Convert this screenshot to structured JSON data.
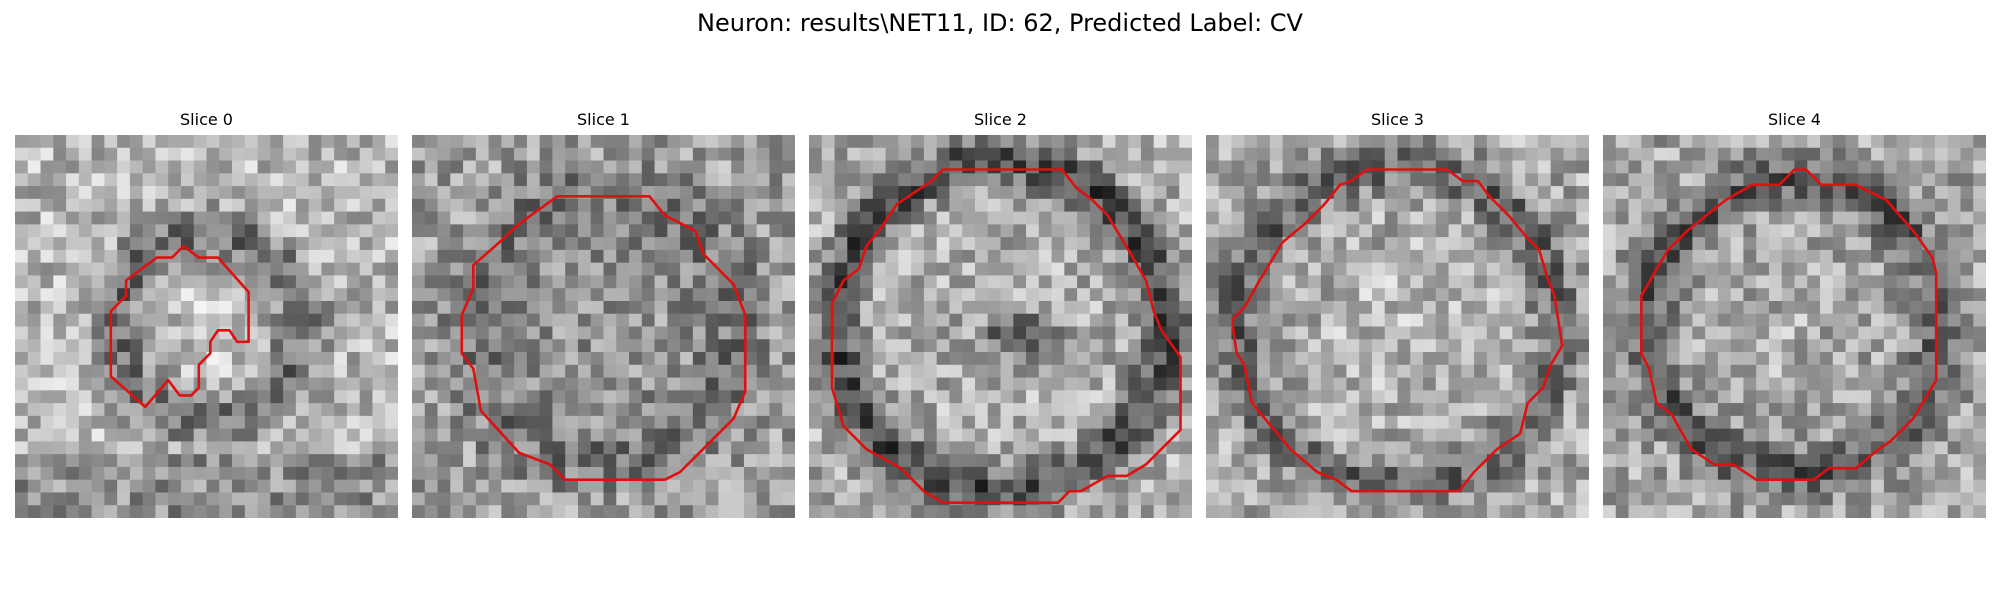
{
  "figure": {
    "title": "Neuron: results\\NET11, ID: 62, Predicted Label: CV",
    "contour_color": "#e01010",
    "colormap": "grayscale"
  },
  "panels": [
    {
      "title": "Slice 0",
      "seed": 11,
      "pattern": "ring-small",
      "contour": [
        [
          0.44,
          0.29
        ],
        [
          0.48,
          0.32
        ],
        [
          0.53,
          0.32
        ],
        [
          0.61,
          0.41
        ],
        [
          0.61,
          0.54
        ],
        [
          0.58,
          0.54
        ],
        [
          0.56,
          0.51
        ],
        [
          0.53,
          0.51
        ],
        [
          0.51,
          0.54
        ],
        [
          0.51,
          0.57
        ],
        [
          0.48,
          0.6
        ],
        [
          0.48,
          0.66
        ],
        [
          0.46,
          0.68
        ],
        [
          0.43,
          0.68
        ],
        [
          0.4,
          0.64
        ],
        [
          0.34,
          0.71
        ],
        [
          0.25,
          0.63
        ],
        [
          0.25,
          0.46
        ],
        [
          0.29,
          0.42
        ],
        [
          0.29,
          0.38
        ],
        [
          0.37,
          0.32
        ],
        [
          0.41,
          0.32
        ]
      ]
    },
    {
      "title": "Slice 1",
      "seed": 23,
      "pattern": "dark-texture",
      "contour": [
        [
          0.38,
          0.16
        ],
        [
          0.62,
          0.16
        ],
        [
          0.66,
          0.21
        ],
        [
          0.74,
          0.25
        ],
        [
          0.76,
          0.31
        ],
        [
          0.84,
          0.39
        ],
        [
          0.87,
          0.47
        ],
        [
          0.87,
          0.67
        ],
        [
          0.84,
          0.74
        ],
        [
          0.76,
          0.82
        ],
        [
          0.7,
          0.88
        ],
        [
          0.66,
          0.9
        ],
        [
          0.4,
          0.9
        ],
        [
          0.36,
          0.86
        ],
        [
          0.28,
          0.83
        ],
        [
          0.18,
          0.72
        ],
        [
          0.16,
          0.61
        ],
        [
          0.13,
          0.57
        ],
        [
          0.13,
          0.47
        ],
        [
          0.16,
          0.4
        ],
        [
          0.16,
          0.34
        ],
        [
          0.24,
          0.27
        ],
        [
          0.27,
          0.24
        ],
        [
          0.31,
          0.21
        ]
      ]
    },
    {
      "title": "Slice 2",
      "seed": 37,
      "pattern": "dark-center",
      "contour": [
        [
          0.35,
          0.09
        ],
        [
          0.66,
          0.09
        ],
        [
          0.7,
          0.14
        ],
        [
          0.74,
          0.17
        ],
        [
          0.78,
          0.21
        ],
        [
          0.84,
          0.31
        ],
        [
          0.88,
          0.38
        ],
        [
          0.9,
          0.46
        ],
        [
          0.92,
          0.51
        ],
        [
          0.97,
          0.58
        ],
        [
          0.97,
          0.77
        ],
        [
          0.93,
          0.81
        ],
        [
          0.88,
          0.86
        ],
        [
          0.83,
          0.89
        ],
        [
          0.78,
          0.89
        ],
        [
          0.71,
          0.93
        ],
        [
          0.68,
          0.93
        ],
        [
          0.65,
          0.96
        ],
        [
          0.35,
          0.96
        ],
        [
          0.3,
          0.93
        ],
        [
          0.24,
          0.87
        ],
        [
          0.15,
          0.82
        ],
        [
          0.09,
          0.76
        ],
        [
          0.06,
          0.66
        ],
        [
          0.06,
          0.44
        ],
        [
          0.09,
          0.38
        ],
        [
          0.13,
          0.35
        ],
        [
          0.15,
          0.29
        ],
        [
          0.19,
          0.24
        ],
        [
          0.23,
          0.18
        ],
        [
          0.26,
          0.16
        ],
        [
          0.32,
          0.12
        ]
      ]
    },
    {
      "title": "Slice 3",
      "seed": 51,
      "pattern": "light-center",
      "contour": [
        [
          0.42,
          0.09
        ],
        [
          0.63,
          0.09
        ],
        [
          0.67,
          0.12
        ],
        [
          0.71,
          0.12
        ],
        [
          0.74,
          0.16
        ],
        [
          0.79,
          0.21
        ],
        [
          0.84,
          0.27
        ],
        [
          0.87,
          0.3
        ],
        [
          0.89,
          0.37
        ],
        [
          0.91,
          0.42
        ],
        [
          0.93,
          0.55
        ],
        [
          0.9,
          0.6
        ],
        [
          0.88,
          0.66
        ],
        [
          0.84,
          0.7
        ],
        [
          0.82,
          0.78
        ],
        [
          0.76,
          0.82
        ],
        [
          0.7,
          0.88
        ],
        [
          0.66,
          0.93
        ],
        [
          0.38,
          0.93
        ],
        [
          0.34,
          0.9
        ],
        [
          0.29,
          0.88
        ],
        [
          0.22,
          0.82
        ],
        [
          0.12,
          0.7
        ],
        [
          0.1,
          0.6
        ],
        [
          0.08,
          0.57
        ],
        [
          0.07,
          0.5
        ],
        [
          0.07,
          0.48
        ],
        [
          0.1,
          0.45
        ],
        [
          0.14,
          0.38
        ],
        [
          0.17,
          0.33
        ],
        [
          0.2,
          0.28
        ],
        [
          0.26,
          0.23
        ],
        [
          0.31,
          0.18
        ],
        [
          0.35,
          0.13
        ],
        [
          0.38,
          0.12
        ]
      ]
    },
    {
      "title": "Slice 4",
      "seed": 73,
      "pattern": "dark-rim",
      "contour": [
        [
          0.5,
          0.09
        ],
        [
          0.53,
          0.09
        ],
        [
          0.57,
          0.13
        ],
        [
          0.66,
          0.13
        ],
        [
          0.74,
          0.17
        ],
        [
          0.81,
          0.25
        ],
        [
          0.86,
          0.32
        ],
        [
          0.87,
          0.36
        ],
        [
          0.87,
          0.64
        ],
        [
          0.84,
          0.69
        ],
        [
          0.81,
          0.74
        ],
        [
          0.75,
          0.8
        ],
        [
          0.72,
          0.82
        ],
        [
          0.66,
          0.87
        ],
        [
          0.59,
          0.87
        ],
        [
          0.55,
          0.9
        ],
        [
          0.4,
          0.9
        ],
        [
          0.34,
          0.86
        ],
        [
          0.29,
          0.86
        ],
        [
          0.23,
          0.82
        ],
        [
          0.18,
          0.73
        ],
        [
          0.14,
          0.7
        ],
        [
          0.12,
          0.61
        ],
        [
          0.1,
          0.57
        ],
        [
          0.1,
          0.42
        ],
        [
          0.14,
          0.35
        ],
        [
          0.17,
          0.3
        ],
        [
          0.22,
          0.25
        ],
        [
          0.27,
          0.21
        ],
        [
          0.32,
          0.17
        ],
        [
          0.39,
          0.13
        ],
        [
          0.46,
          0.13
        ]
      ]
    }
  ]
}
